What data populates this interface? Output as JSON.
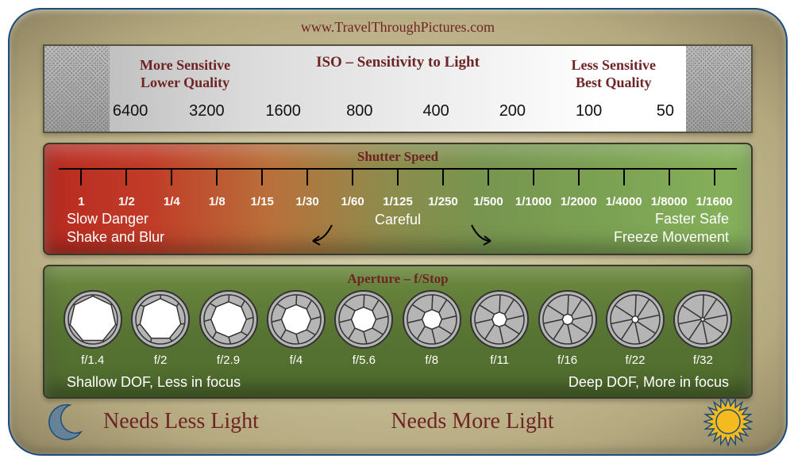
{
  "url": "www.TravelThroughPictures.com",
  "colors": {
    "card_border": "#1e4d7a",
    "card_bg_inner": "#d8cfab",
    "card_bg_outer": "#8e8360",
    "heading_text": "#6e2424",
    "axis_text": "#ffffff",
    "iso_value_text": "#111111",
    "shutter_grad_start": "#b92a20",
    "shutter_grad_end": "#87b25c",
    "aperture_bg": "#587433",
    "aperture_ring": "#b5b5b5",
    "aperture_blade": "#333333",
    "moon_fill": "#668297",
    "sun_fill": "#f5ba1e",
    "sun_stroke": "#1e4d7a"
  },
  "iso": {
    "title": "ISO – Sensitivity to Light",
    "left": {
      "line1": "More Sensitive",
      "line2": "Lower Quality"
    },
    "right": {
      "line1": "Less Sensitive",
      "line2": "Best Quality"
    },
    "values": [
      "6400",
      "3200",
      "1600",
      "800",
      "400",
      "200",
      "100",
      "50"
    ]
  },
  "shutter": {
    "title": "Shutter Speed",
    "values": [
      "1",
      "1/2",
      "1/4",
      "1/8",
      "1/15",
      "1/30",
      "1/60",
      "1/125",
      "1/250",
      "1/500",
      "1/1000",
      "1/2000",
      "1/4000",
      "1/8000",
      "1/1600"
    ],
    "left": {
      "line1": "Slow Danger",
      "line2": "Shake and Blur"
    },
    "center": "Careful",
    "right": {
      "line1": "Faster Safe",
      "line2": "Freeze Movement"
    }
  },
  "aperture": {
    "title": "Aperture – f/Stop",
    "items": [
      {
        "label": "f/1.4",
        "open": 0.95,
        "blades": 7
      },
      {
        "label": "f/2",
        "open": 0.85,
        "blades": 7
      },
      {
        "label": "f/2.9",
        "open": 0.72,
        "blades": 8
      },
      {
        "label": "f/4",
        "open": 0.6,
        "blades": 8
      },
      {
        "label": "f/5.6",
        "open": 0.5,
        "blades": 8
      },
      {
        "label": "f/8",
        "open": 0.4,
        "blades": 8
      },
      {
        "label": "f/11",
        "open": 0.3,
        "blades": 8
      },
      {
        "label": "f/16",
        "open": 0.22,
        "blades": 8
      },
      {
        "label": "f/22",
        "open": 0.14,
        "blades": 8
      },
      {
        "label": "f/32",
        "open": 0.08,
        "blades": 8
      }
    ],
    "left_label": "Shallow DOF, Less in focus",
    "right_label": "Deep DOF, More in focus"
  },
  "footer": {
    "left": "Needs Less Light",
    "right": "Needs More Light"
  }
}
